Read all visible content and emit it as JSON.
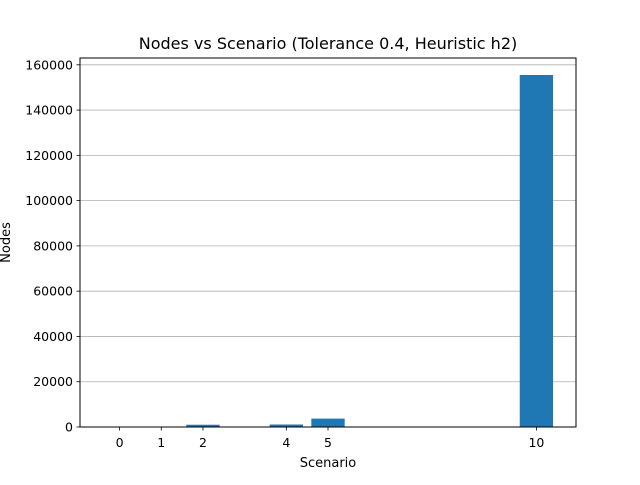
{
  "chart_data": {
    "type": "bar",
    "title": "Nodes vs Scenario (Tolerance 0.4, Heuristic h2)",
    "xlabel": "Scenario",
    "ylabel": "Nodes",
    "x": [
      0,
      1,
      2,
      4,
      5,
      10
    ],
    "values": [
      30,
      60,
      1000,
      1100,
      3700,
      155500
    ],
    "xticks": [
      "0",
      "1",
      "2",
      "4",
      "5",
      "10"
    ],
    "yticks": [
      "0",
      "20000",
      "40000",
      "60000",
      "80000",
      "100000",
      "120000",
      "140000",
      "160000"
    ],
    "ytick_values": [
      0,
      20000,
      40000,
      60000,
      80000,
      100000,
      120000,
      140000,
      160000
    ],
    "xlim": [
      -0.95,
      10.95
    ],
    "ylim": [
      0,
      163000
    ],
    "grid": "horizontal",
    "bar_width": 0.8,
    "bar_color": "#1f77b4"
  }
}
